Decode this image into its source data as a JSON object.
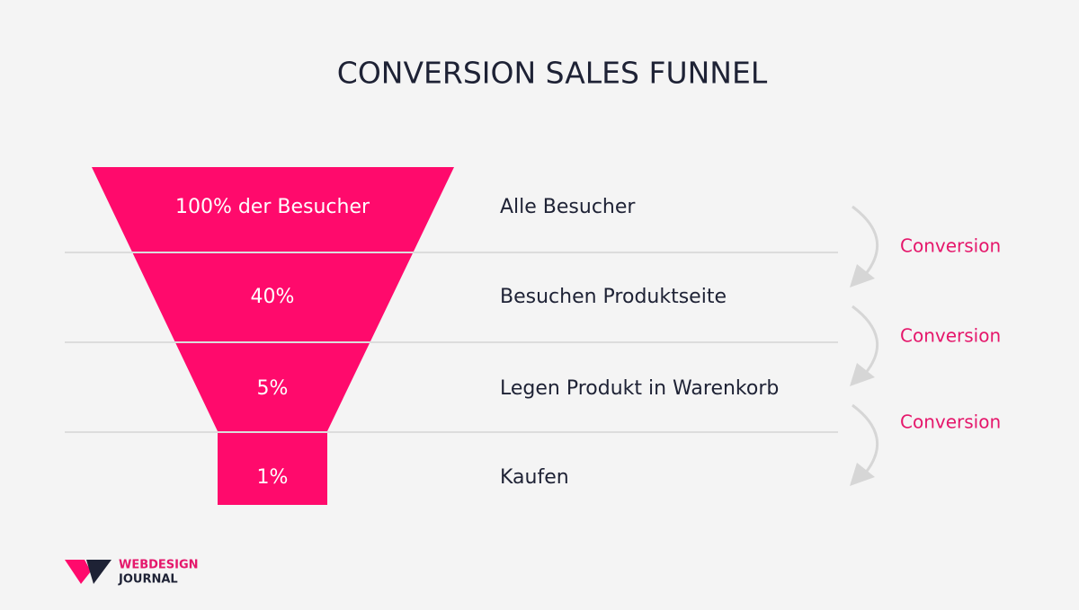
{
  "title": "CONVERSION SALES FUNNEL",
  "stages": [
    {
      "funnel_label": "100% der Besucher",
      "label": "Alle Besucher"
    },
    {
      "funnel_label": "40%",
      "label": "Besuchen Produktseite"
    },
    {
      "funnel_label": "5%",
      "label": "Legen Produkt in Warenkorb"
    },
    {
      "funnel_label": "1%",
      "label": "Kaufen"
    }
  ],
  "conversions": [
    "Conversion",
    "Conversion",
    "Conversion"
  ],
  "logo": {
    "line1": "WEBDESIGN",
    "line2": "JOURNAL"
  }
}
